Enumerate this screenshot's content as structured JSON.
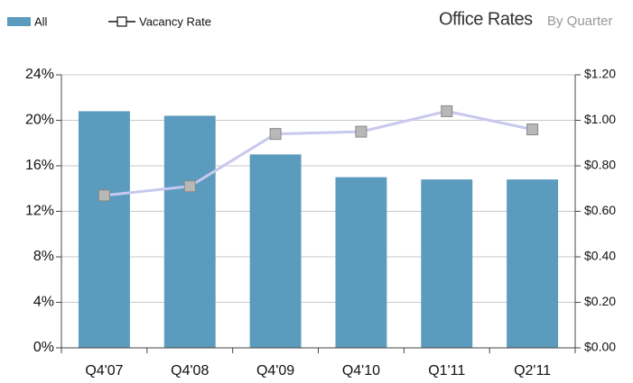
{
  "chart_data": {
    "type": "combo",
    "title": "Office Rates",
    "subtitle": "By Quarter",
    "categories": [
      "Q4'07",
      "Q4'08",
      "Q4'09",
      "Q4'10",
      "Q1'11",
      "Q2'11"
    ],
    "series": [
      {
        "name": "All",
        "type": "bar",
        "axis": "y2",
        "color": "#5b9bbd",
        "values": [
          1.04,
          1.02,
          0.85,
          0.75,
          0.74,
          0.74
        ]
      },
      {
        "name": "Vacancy Rate",
        "type": "line",
        "axis": "y",
        "color": "#c8c8f0",
        "marker_color": "#b8b8b8",
        "values": [
          13.4,
          14.2,
          18.8,
          19.0,
          20.8,
          19.2
        ]
      }
    ],
    "ylim": [
      0,
      24
    ],
    "yticks": [
      {
        "value": 0,
        "label": "0%"
      },
      {
        "value": 4,
        "label": "4%"
      },
      {
        "value": 8,
        "label": "8%"
      },
      {
        "value": 12,
        "label": "12%"
      },
      {
        "value": 16,
        "label": "16%"
      },
      {
        "value": 20,
        "label": "20%"
      },
      {
        "value": 24,
        "label": "24%"
      }
    ],
    "y2lim": [
      0,
      1.2
    ],
    "y2ticks": [
      {
        "value": 0,
        "label": "$0.00"
      },
      {
        "value": 0.2,
        "label": "$0.20"
      },
      {
        "value": 0.4,
        "label": "$0.40"
      },
      {
        "value": 0.6,
        "label": "$0.60"
      },
      {
        "value": 0.8,
        "label": "$0.80"
      },
      {
        "value": 1.0,
        "label": "$1.00"
      },
      {
        "value": 1.2,
        "label": "$1.20"
      }
    ],
    "grid": true,
    "legend": "top-left"
  }
}
